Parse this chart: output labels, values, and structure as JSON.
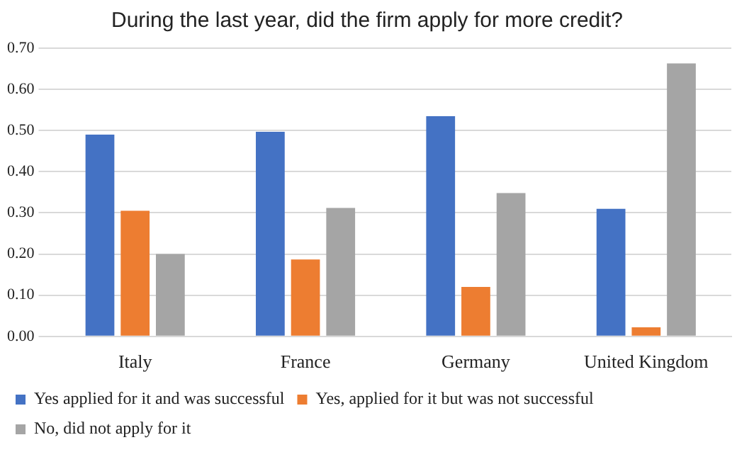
{
  "chart_data": {
    "type": "bar",
    "title": "During the last year, did the firm apply for more credit?",
    "categories": [
      "Italy",
      "France",
      "Germany",
      "United Kingdom"
    ],
    "series": [
      {
        "name": "Yes applied for it and was successful",
        "color": "#4472c4",
        "values": [
          0.49,
          0.497,
          0.535,
          0.31
        ]
      },
      {
        "name": "Yes, applied for it but was not successful",
        "color": "#ed7d31",
        "values": [
          0.305,
          0.187,
          0.12,
          0.022
        ]
      },
      {
        "name": "No, did not apply for it",
        "color": "#a5a5a5",
        "values": [
          0.2,
          0.312,
          0.348,
          0.663
        ]
      }
    ],
    "ylim": [
      0,
      0.7
    ],
    "yticks": [
      {
        "value": 0,
        "label": "0.00"
      },
      {
        "value": 0.1,
        "label": "0.10"
      },
      {
        "value": 0.2,
        "label": "0.20"
      },
      {
        "value": 0.3,
        "label": "0.30"
      },
      {
        "value": 0.4,
        "label": "0.40"
      },
      {
        "value": 0.5,
        "label": "0.50"
      },
      {
        "value": 0.6,
        "label": "0.60"
      },
      {
        "value": 0.7,
        "label": "0.70"
      }
    ],
    "grid": "y",
    "legend": "bottom"
  }
}
